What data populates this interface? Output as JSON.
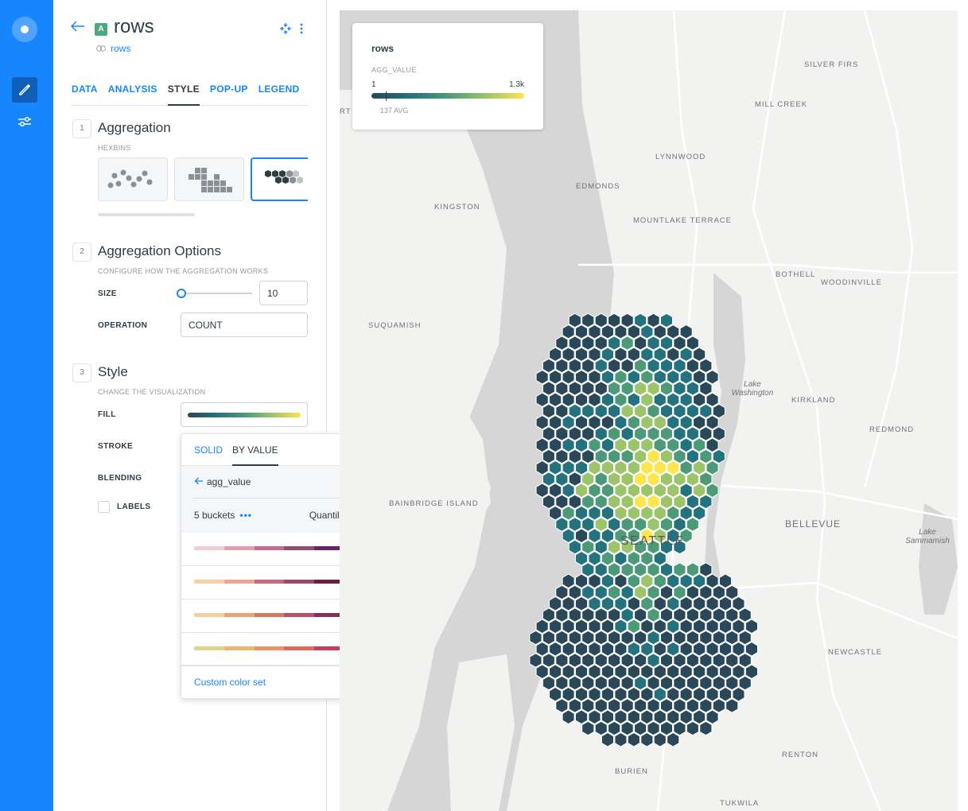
{
  "header": {
    "title": "rows",
    "source_link": "rows",
    "badge": "A"
  },
  "tabs": [
    {
      "label": "DATA"
    },
    {
      "label": "ANALYSIS"
    },
    {
      "label": "STYLE"
    },
    {
      "label": "POP-UP"
    },
    {
      "label": "LEGEND"
    }
  ],
  "active_tab": "STYLE",
  "sections": {
    "aggregation": {
      "num": "1",
      "title": "Aggregation",
      "subtitle": "HEXBINS"
    },
    "options": {
      "num": "2",
      "title": "Aggregation Options",
      "subtitle": "CONFIGURE HOW THE AGGREGATION WORKS",
      "size_label": "SIZE",
      "size_value": "10",
      "size_slider_fraction": 0.0,
      "operation_label": "OPERATION",
      "operation_value": "COUNT"
    },
    "style": {
      "num": "3",
      "title": "Style",
      "subtitle": "CHANGE THE VISUALIZATION",
      "fill_label": "FILL",
      "stroke_label": "STROKE",
      "blending_label": "BLENDING",
      "labels_label": "LABELS"
    }
  },
  "popover": {
    "tab_solid": "SOLID",
    "tab_by_value": "BY VALUE",
    "attribute": "agg_value",
    "buckets": "5 buckets",
    "quantification": "Quantiles",
    "palettes": [
      [
        "#f3cbd3",
        "#e29fab",
        "#c86a8a",
        "#934d73",
        "#6c2167"
      ],
      [
        "#f6d2a9",
        "#e9a792",
        "#c86a7f",
        "#934d73",
        "#672044"
      ],
      [
        "#f3cf9f",
        "#eaa473",
        "#d8795f",
        "#b65367",
        "#862f5a"
      ],
      [
        "#e4d38b",
        "#eeb56e",
        "#ee9167",
        "#e16a5f",
        "#c83d5d"
      ]
    ],
    "custom_link": "Custom color set"
  },
  "legend": {
    "title": "rows",
    "field": "AGG_VALUE",
    "min": "1",
    "max": "1.3k",
    "avg": "137 AVG"
  },
  "map_labels": [
    {
      "text": "SILVER FIRS"
    },
    {
      "text": "MILL CREEK"
    },
    {
      "text": "LYNNWOOD"
    },
    {
      "text": "EDMONDS"
    },
    {
      "text": "KINGSTON"
    },
    {
      "text": "MOUNTLAKE TERRACE"
    },
    {
      "text": "BOTHELL"
    },
    {
      "text": "WOODINVILLE"
    },
    {
      "text": "SUQUAMISH"
    },
    {
      "text": "Lake Washington"
    },
    {
      "text": "KIRKLAND"
    },
    {
      "text": "REDMOND"
    },
    {
      "text": "BAINBRIDGE ISLAND"
    },
    {
      "text": "BELLEVUE"
    },
    {
      "text": "SEATTLE"
    },
    {
      "text": "Lake Sammamish"
    },
    {
      "text": "NEWCASTLE"
    },
    {
      "text": "RENTON"
    },
    {
      "text": "BURIEN"
    },
    {
      "text": "TUKWILA"
    },
    {
      "text": "RT"
    }
  ],
  "colors": {
    "brand": "#1785fb",
    "ramp": [
      "#2a4858",
      "#23727e",
      "#4c9a77",
      "#9cc46a",
      "#fbe64d"
    ]
  }
}
